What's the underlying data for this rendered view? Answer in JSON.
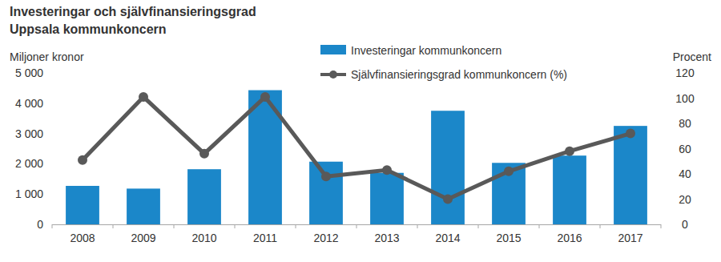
{
  "chart_data": {
    "type": "bar",
    "title": "Investeringar och självfinansieringsgrad",
    "subtitle": "Uppsala kommunkoncern",
    "ylabel": "Miljoner kronor",
    "y2label": "Procent",
    "categories": [
      "2008",
      "2009",
      "2010",
      "2011",
      "2012",
      "2013",
      "2014",
      "2015",
      "2016",
      "2017"
    ],
    "series": [
      {
        "name": "Investeringar kommunkoncern",
        "type": "bar",
        "color": "#1b87c9",
        "values": [
          1270,
          1180,
          1820,
          4430,
          2070,
          1700,
          3750,
          2030,
          2270,
          3250
        ]
      },
      {
        "name": "Självfinansieringsgrad kommunkoncern (%)",
        "type": "line",
        "color": "#595959",
        "marker": "circle",
        "line_style": "solid",
        "axis": "y2",
        "values": [
          51,
          101,
          56,
          101,
          38,
          43,
          20,
          42,
          58,
          72
        ]
      }
    ],
    "ylim": [
      0,
      5000
    ],
    "yticks": [
      0,
      {
        "value": 1000,
        "label": "1 000"
      },
      {
        "value": 2000,
        "label": "2 000"
      },
      {
        "value": 3000,
        "label": "3 000"
      },
      {
        "value": 4000,
        "label": "4 000"
      },
      {
        "value": 5000,
        "label": "5 000"
      }
    ],
    "y2lim": [
      0,
      120
    ],
    "y2ticks": [
      0,
      20,
      40,
      60,
      80,
      100,
      120
    ],
    "grid": false,
    "legend": "top"
  }
}
